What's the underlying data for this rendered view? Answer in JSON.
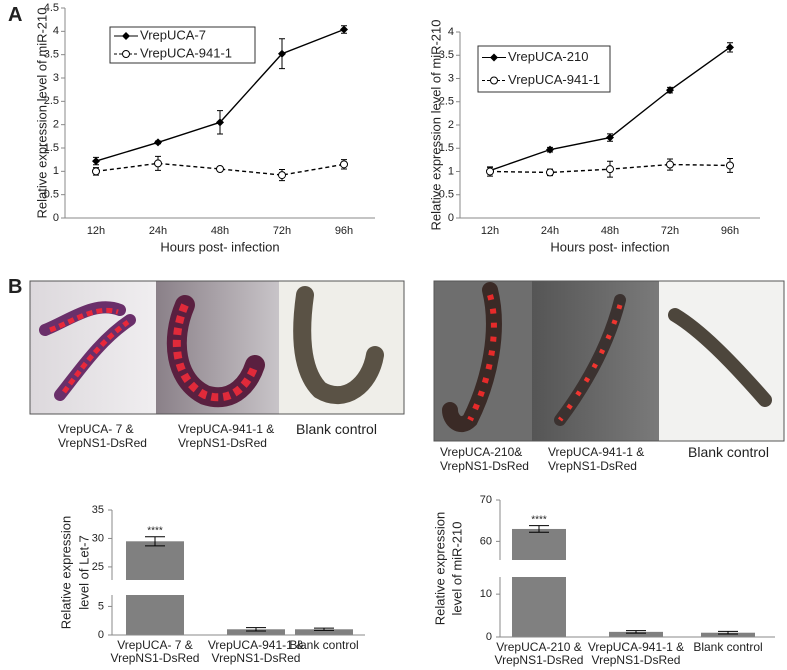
{
  "panels": [
    "A",
    "B"
  ],
  "photos": [
    {
      "captions": [
        "VrepUCA- 7    &\nVrepNS1-DsRed",
        "VrepUCA-941-1 &\nVrepNS1-DsRed",
        "Blank control"
      ]
    },
    {
      "captions": [
        "VrepUCA-210&\nVrepNS1-DsRed",
        "VrepUCA-941-1 &\nVrepNS1-DsRed",
        "Blank control"
      ]
    }
  ],
  "chart_data": [
    {
      "type": "line",
      "ylabel": "Relative expression level of miR-210",
      "xlabel": "Hours post- infection",
      "categories": [
        "12h",
        "24h",
        "48h",
        "72h",
        "96h"
      ],
      "ylim": [
        0,
        4.5
      ],
      "yticks": [
        0,
        0.5,
        1,
        1.5,
        2,
        2.5,
        3,
        3.5,
        4,
        4.5
      ],
      "grid": false,
      "series": [
        {
          "name": "VrepUCA-7",
          "color": "#000000",
          "linestyle": "solid",
          "marker": "diamond",
          "values": [
            1.22,
            1.62,
            2.05,
            3.52,
            4.04
          ],
          "errors": [
            0.08,
            0.03,
            0.25,
            0.32,
            0.08
          ]
        },
        {
          "name": "VrepUCA-941-1",
          "color": "#000000",
          "linestyle": "dashed",
          "marker": "circle",
          "values": [
            1.0,
            1.17,
            1.05,
            0.92,
            1.15
          ],
          "errors": [
            0.08,
            0.15,
            0.04,
            0.12,
            0.1
          ]
        }
      ]
    },
    {
      "type": "line",
      "ylabel": "Relative expression level of miR-210",
      "xlabel": "Hours post- infection",
      "categories": [
        "12h",
        "24h",
        "48h",
        "72h",
        "96h"
      ],
      "ylim": [
        0,
        4
      ],
      "yticks": [
        0,
        0.5,
        1,
        1.5,
        2,
        2.5,
        3,
        3.5,
        4
      ],
      "grid": false,
      "series": [
        {
          "name": "VrepUCA-210",
          "color": "#000000",
          "linestyle": "solid",
          "marker": "diamond",
          "values": [
            1.02,
            1.47,
            1.73,
            2.75,
            3.67
          ],
          "errors": [
            0.07,
            0.05,
            0.08,
            0.06,
            0.1
          ]
        },
        {
          "name": "VrepUCA-941-1",
          "color": "#000000",
          "linestyle": "dashed",
          "marker": "circle",
          "values": [
            1.0,
            0.98,
            1.05,
            1.15,
            1.13
          ],
          "errors": [
            0.1,
            0.07,
            0.17,
            0.12,
            0.15
          ]
        }
      ]
    },
    {
      "type": "bar",
      "ylabel": [
        "Relative expression",
        "level of  Let-7"
      ],
      "color": "#808080",
      "categories": [
        "VrepUCA- 7    &\nVrepNS1-DsRed",
        "VrepUCA-941-1 &\nVrepNS1-DsRed",
        "Blank control"
      ],
      "values": [
        29.5,
        1.0,
        1.0
      ],
      "errors": [
        0.8,
        0.3,
        0.2
      ],
      "significance": [
        "****",
        null,
        null
      ],
      "segments": [
        {
          "ylim": [
            0,
            7
          ],
          "yticks": [
            0,
            5
          ]
        },
        {
          "ylim": [
            22.7,
            35
          ],
          "yticks": [
            25,
            30,
            35
          ]
        }
      ]
    },
    {
      "type": "bar",
      "ylabel": [
        "Relative expression",
        "level of miR-210"
      ],
      "color": "#808080",
      "categories": [
        "VrepUCA-210 &\nVrepNS1-DsRed",
        "VrepUCA-941-1 &\nVrepNS1-DsRed",
        "Blank control"
      ],
      "values": [
        63,
        1.2,
        1.0
      ],
      "errors": [
        0.8,
        0.3,
        0.3
      ],
      "significance": [
        "****",
        null,
        null
      ],
      "segments": [
        {
          "ylim": [
            0,
            14
          ],
          "yticks": [
            0,
            10
          ]
        },
        {
          "ylim": [
            55.5,
            70
          ],
          "yticks": [
            60,
            70
          ]
        }
      ]
    }
  ]
}
